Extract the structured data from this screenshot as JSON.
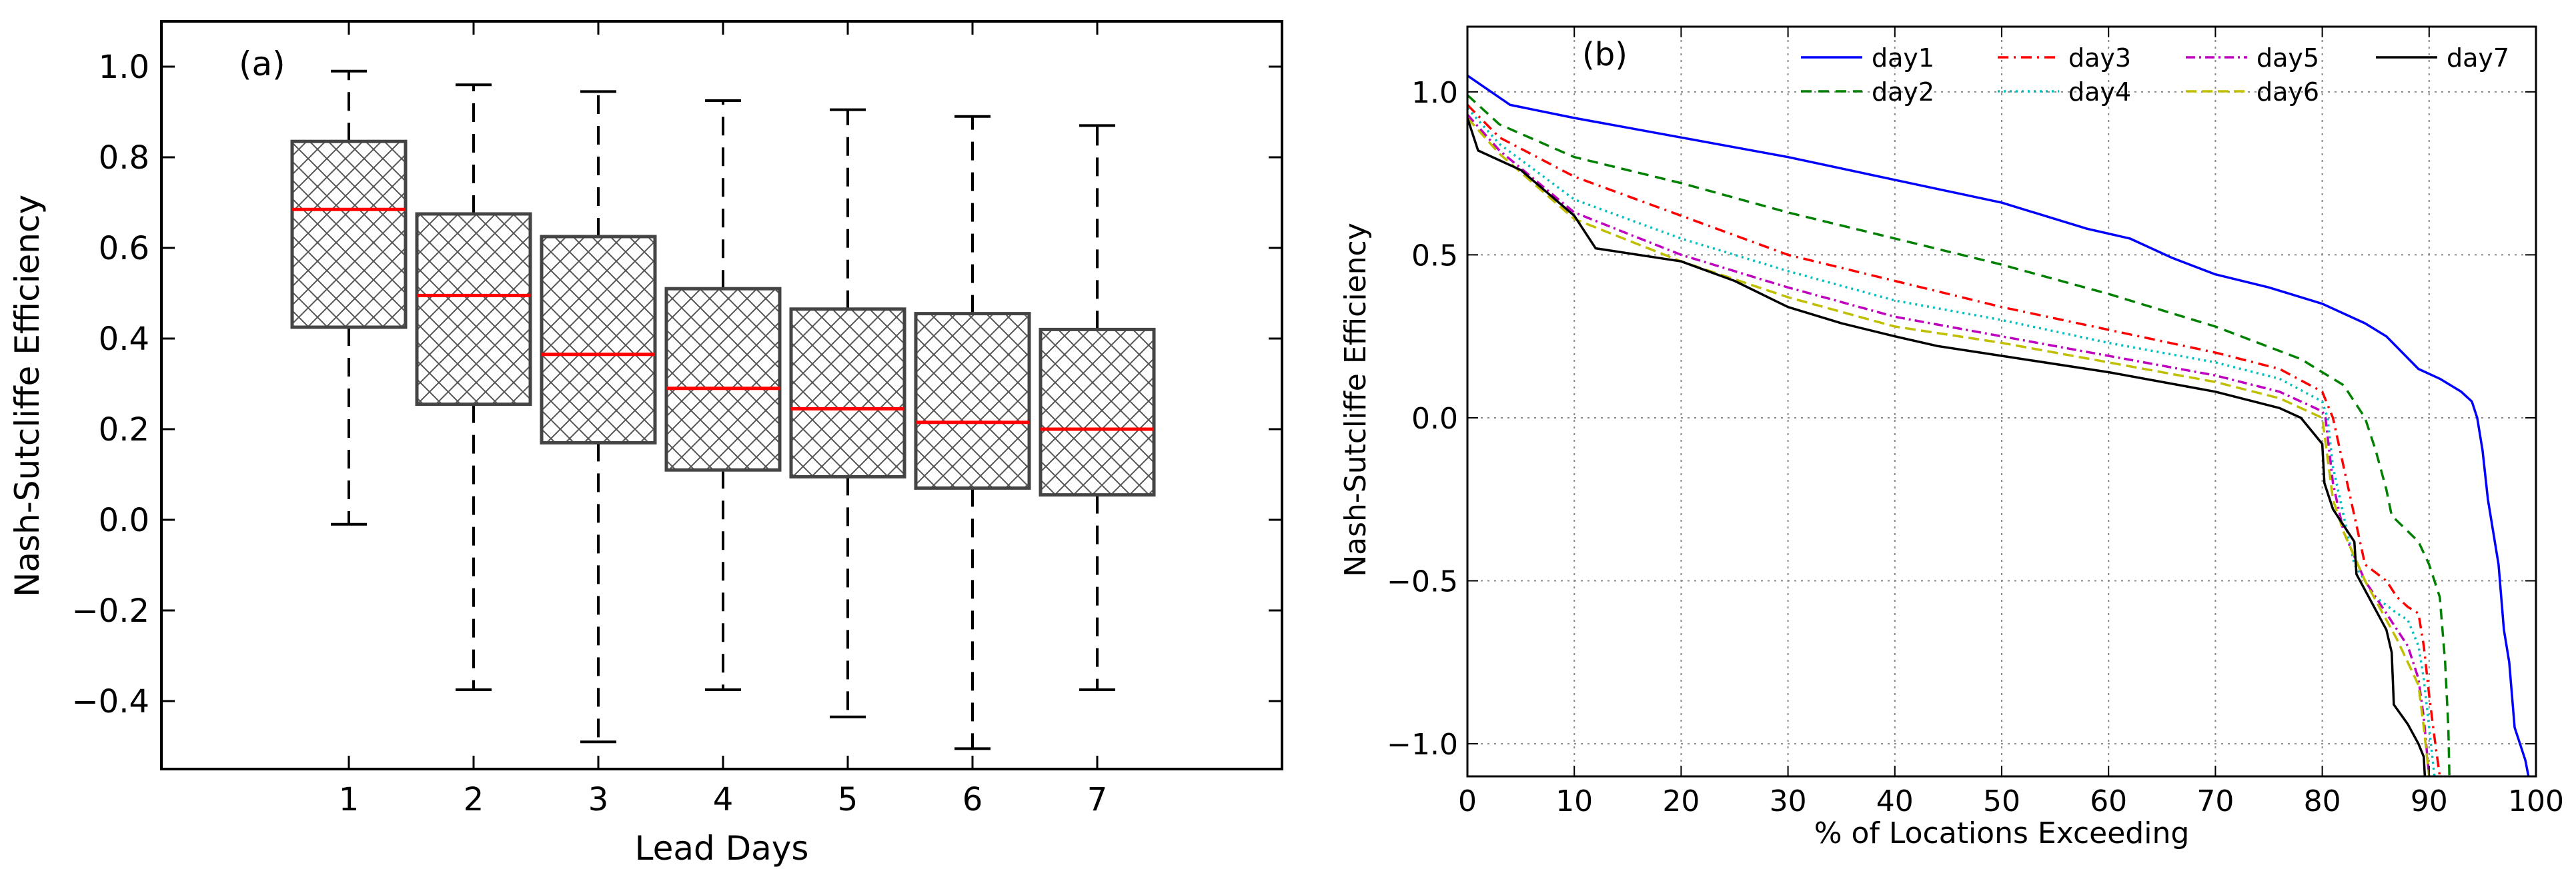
{
  "chart_data": [
    {
      "type": "box",
      "panel_label": "(a)",
      "xlabel": "Lead Days",
      "ylabel": "Nash-Sutcliffe Efficiency",
      "ylim": [
        -0.55,
        1.1
      ],
      "yticks": [
        1.0,
        0.8,
        0.6,
        0.4,
        0.2,
        0.0,
        -0.2,
        -0.4
      ],
      "ytick_labels": [
        "1.0",
        "0.8",
        "0.6",
        "0.4",
        "0.2",
        "0.0",
        "−0.2",
        "−0.4"
      ],
      "categories": [
        "1",
        "2",
        "3",
        "4",
        "5",
        "6",
        "7"
      ],
      "boxes": [
        {
          "whislo": -0.01,
          "q1": 0.425,
          "med": 0.685,
          "q3": 0.835,
          "whishi": 0.99
        },
        {
          "whislo": -0.375,
          "q1": 0.255,
          "med": 0.495,
          "q3": 0.675,
          "whishi": 0.96
        },
        {
          "whislo": -0.49,
          "q1": 0.17,
          "med": 0.365,
          "q3": 0.625,
          "whishi": 0.945
        },
        {
          "whislo": -0.375,
          "q1": 0.11,
          "med": 0.29,
          "q3": 0.51,
          "whishi": 0.925
        },
        {
          "whislo": -0.435,
          "q1": 0.095,
          "med": 0.245,
          "q3": 0.465,
          "whishi": 0.905
        },
        {
          "whislo": -0.505,
          "q1": 0.07,
          "med": 0.215,
          "q3": 0.455,
          "whishi": 0.89
        },
        {
          "whislo": -0.375,
          "q1": 0.055,
          "med": 0.2,
          "q3": 0.42,
          "whishi": 0.87
        }
      ],
      "box_color": "#444444",
      "median_color": "#ff0000"
    },
    {
      "type": "line",
      "panel_label": "(b)",
      "xlabel": "% of Locations Exceeding",
      "ylabel": "Nash-Sutcliffe Efficiency",
      "xlim": [
        0,
        100
      ],
      "ylim": [
        -1.1,
        1.2
      ],
      "xticks": [
        0,
        10,
        20,
        30,
        40,
        50,
        60,
        70,
        80,
        90,
        100
      ],
      "yticks": [
        1.0,
        0.5,
        0.0,
        -0.5,
        -1.0
      ],
      "ytick_labels": [
        "1.0",
        "0.5",
        "0.0",
        "−0.5",
        "−1.0"
      ],
      "grid": true,
      "legend": "top",
      "series": [
        {
          "name": "day1",
          "color": "#0000ff",
          "dash": "",
          "points": [
            [
              0,
              1.05
            ],
            [
              4,
              0.96
            ],
            [
              10,
              0.92
            ],
            [
              20,
              0.86
            ],
            [
              30,
              0.8
            ],
            [
              40,
              0.73
            ],
            [
              50,
              0.66
            ],
            [
              58,
              0.58
            ],
            [
              62,
              0.55
            ],
            [
              66,
              0.49
            ],
            [
              70,
              0.44
            ],
            [
              75,
              0.4
            ],
            [
              80,
              0.35
            ],
            [
              84,
              0.29
            ],
            [
              86,
              0.25
            ],
            [
              89,
              0.15
            ],
            [
              91,
              0.12
            ],
            [
              93,
              0.08
            ],
            [
              94,
              0.05
            ],
            [
              94.5,
              0.0
            ],
            [
              95,
              -0.1
            ],
            [
              95.5,
              -0.25
            ],
            [
              96,
              -0.35
            ],
            [
              96.5,
              -0.45
            ],
            [
              97,
              -0.65
            ],
            [
              97.5,
              -0.75
            ],
            [
              98,
              -0.95
            ],
            [
              99,
              -1.05
            ],
            [
              99.3,
              -1.1
            ]
          ]
        },
        {
          "name": "day2",
          "color": "#008000",
          "dash": "16,10",
          "points": [
            [
              0,
              0.99
            ],
            [
              3,
              0.9
            ],
            [
              10,
              0.8
            ],
            [
              20,
              0.72
            ],
            [
              30,
              0.63
            ],
            [
              40,
              0.55
            ],
            [
              50,
              0.47
            ],
            [
              60,
              0.38
            ],
            [
              70,
              0.28
            ],
            [
              78,
              0.18
            ],
            [
              82,
              0.1
            ],
            [
              84,
              0.0
            ],
            [
              85,
              -0.1
            ],
            [
              86,
              -0.22
            ],
            [
              86.5,
              -0.3
            ],
            [
              89,
              -0.38
            ],
            [
              90,
              -0.45
            ],
            [
              91,
              -0.55
            ],
            [
              91.5,
              -0.75
            ],
            [
              91.8,
              -0.95
            ],
            [
              91.9,
              -1.1
            ]
          ]
        },
        {
          "name": "day3",
          "color": "#ff0000",
          "dash": "16,8,3,8",
          "points": [
            [
              0,
              0.96
            ],
            [
              3,
              0.86
            ],
            [
              10,
              0.74
            ],
            [
              20,
              0.62
            ],
            [
              30,
              0.5
            ],
            [
              40,
              0.42
            ],
            [
              50,
              0.34
            ],
            [
              60,
              0.27
            ],
            [
              70,
              0.2
            ],
            [
              76,
              0.15
            ],
            [
              80,
              0.08
            ],
            [
              81,
              0.0
            ],
            [
              82,
              -0.15
            ],
            [
              83,
              -0.3
            ],
            [
              84,
              -0.45
            ],
            [
              86,
              -0.5
            ],
            [
              87,
              -0.55
            ],
            [
              88,
              -0.58
            ],
            [
              89,
              -0.6
            ],
            [
              89.5,
              -0.7
            ],
            [
              90,
              -0.85
            ],
            [
              90.5,
              -0.98
            ],
            [
              91,
              -1.1
            ]
          ]
        },
        {
          "name": "day4",
          "color": "#00bfbf",
          "dash": "3,6",
          "points": [
            [
              0,
              0.95
            ],
            [
              3,
              0.84
            ],
            [
              10,
              0.67
            ],
            [
              20,
              0.55
            ],
            [
              30,
              0.45
            ],
            [
              40,
              0.36
            ],
            [
              50,
              0.3
            ],
            [
              60,
              0.23
            ],
            [
              70,
              0.17
            ],
            [
              76,
              0.12
            ],
            [
              80,
              0.05
            ],
            [
              80.5,
              0.0
            ],
            [
              81,
              -0.15
            ],
            [
              82,
              -0.3
            ],
            [
              83,
              -0.45
            ],
            [
              85,
              -0.55
            ],
            [
              87,
              -0.6
            ],
            [
              88,
              -0.62
            ],
            [
              89,
              -0.7
            ],
            [
              89.5,
              -0.8
            ],
            [
              90,
              -0.95
            ],
            [
              90.5,
              -1.1
            ]
          ]
        },
        {
          "name": "day5",
          "color": "#bf00bf",
          "dash": "14,6,3,6",
          "points": [
            [
              0,
              0.93
            ],
            [
              3,
              0.82
            ],
            [
              10,
              0.63
            ],
            [
              20,
              0.5
            ],
            [
              30,
              0.4
            ],
            [
              40,
              0.31
            ],
            [
              50,
              0.25
            ],
            [
              60,
              0.19
            ],
            [
              70,
              0.13
            ],
            [
              76,
              0.08
            ],
            [
              80,
              0.02
            ],
            [
              80.3,
              0.0
            ],
            [
              81,
              -0.2
            ],
            [
              82,
              -0.35
            ],
            [
              84,
              -0.5
            ],
            [
              86,
              -0.6
            ],
            [
              87,
              -0.65
            ],
            [
              88,
              -0.7
            ],
            [
              89,
              -0.8
            ],
            [
              89.5,
              -0.92
            ],
            [
              90,
              -1.1
            ]
          ]
        },
        {
          "name": "day6",
          "color": "#bfbf00",
          "dash": "16,8",
          "points": [
            [
              0,
              0.92
            ],
            [
              3,
              0.81
            ],
            [
              10,
              0.61
            ],
            [
              20,
              0.48
            ],
            [
              30,
              0.37
            ],
            [
              40,
              0.28
            ],
            [
              50,
              0.23
            ],
            [
              60,
              0.17
            ],
            [
              70,
              0.11
            ],
            [
              76,
              0.06
            ],
            [
              80,
              0.0
            ],
            [
              80.2,
              -0.05
            ],
            [
              81,
              -0.25
            ],
            [
              82,
              -0.35
            ],
            [
              84,
              -0.5
            ],
            [
              86,
              -0.62
            ],
            [
              87,
              -0.68
            ],
            [
              88,
              -0.75
            ],
            [
              89,
              -0.82
            ],
            [
              89.5,
              -0.95
            ],
            [
              90,
              -1.1
            ]
          ]
        },
        {
          "name": "day7",
          "color": "#000000",
          "dash": "",
          "points": [
            [
              0,
              0.92
            ],
            [
              1,
              0.82
            ],
            [
              5,
              0.76
            ],
            [
              10,
              0.62
            ],
            [
              12,
              0.52
            ],
            [
              20,
              0.48
            ],
            [
              25,
              0.42
            ],
            [
              30,
              0.34
            ],
            [
              35,
              0.29
            ],
            [
              40,
              0.25
            ],
            [
              44,
              0.22
            ],
            [
              50,
              0.19
            ],
            [
              60,
              0.14
            ],
            [
              70,
              0.08
            ],
            [
              76,
              0.03
            ],
            [
              78,
              0.0
            ],
            [
              80,
              -0.08
            ],
            [
              80.2,
              -0.2
            ],
            [
              81,
              -0.28
            ],
            [
              82,
              -0.33
            ],
            [
              83,
              -0.38
            ],
            [
              83.2,
              -0.48
            ],
            [
              86,
              -0.65
            ],
            [
              86.5,
              -0.72
            ],
            [
              86.7,
              -0.88
            ],
            [
              88,
              -0.94
            ],
            [
              89,
              -1.0
            ],
            [
              89.5,
              -1.04
            ],
            [
              89.6,
              -1.1
            ]
          ]
        }
      ]
    }
  ]
}
